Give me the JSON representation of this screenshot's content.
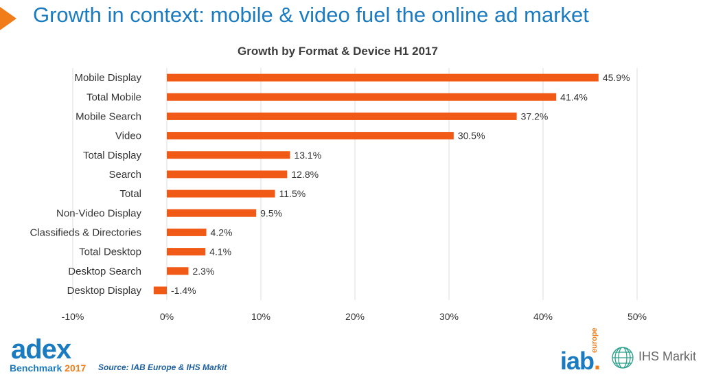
{
  "page": {
    "title": "Growth in context: mobile & video fuel the online ad market",
    "source": "Source: IAB Europe & IHS Markit"
  },
  "logos": {
    "adex_main": "adex",
    "adex_sub": "Benchmark",
    "adex_year": "2017",
    "iab_word": "iab",
    "iab_dot": ".",
    "iab_region": "europe",
    "ihs": "IHS Markit"
  },
  "icons": [
    "title-arrow-icon",
    "ihs-globe-icon"
  ],
  "colors": {
    "bar": "#f15a16",
    "title": "#1a7bc0",
    "accent": "#f07d1a",
    "grid": "#dddddd"
  },
  "chart_data": {
    "type": "bar",
    "orientation": "horizontal",
    "title": "Growth by Format & Device H1 2017",
    "categories": [
      "Mobile Display",
      "Total Mobile",
      "Mobile Search",
      "Video",
      "Total Display",
      "Search",
      "Total",
      "Non-Video Display",
      "Classifieds & Directories",
      "Total Desktop",
      "Desktop Search",
      "Desktop Display"
    ],
    "values": [
      45.9,
      41.4,
      37.2,
      30.5,
      13.1,
      12.8,
      11.5,
      9.5,
      4.2,
      4.1,
      2.3,
      -1.4
    ],
    "value_labels": [
      "45.9%",
      "41.4%",
      "37.2%",
      "30.5%",
      "13.1%",
      "12.8%",
      "11.5%",
      "9.5%",
      "4.2%",
      "4.1%",
      "2.3%",
      "-1.4%"
    ],
    "xlim": [
      -10,
      50
    ],
    "xticks": [
      -10,
      0,
      10,
      20,
      30,
      40,
      50
    ],
    "xtick_labels": [
      "-10%",
      "0%",
      "10%",
      "20%",
      "30%",
      "40%",
      "50%"
    ],
    "xlabel": "",
    "ylabel": "",
    "grid": true,
    "legend": "none"
  }
}
